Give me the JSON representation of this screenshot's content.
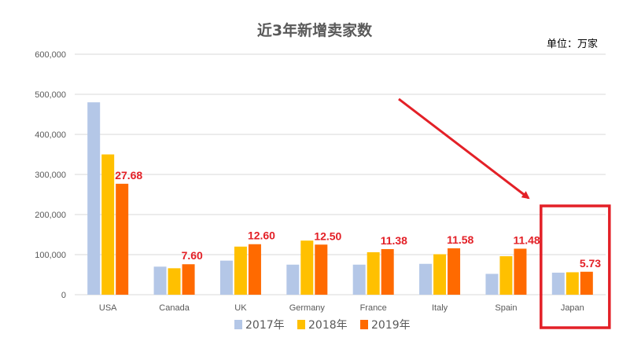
{
  "chart_data": {
    "type": "bar",
    "title": "近3年新增卖家数",
    "unit_note": "单位：万家",
    "categories": [
      "USA",
      "Canada",
      "UK",
      "Germany",
      "France",
      "Italy",
      "Spain",
      "Japan"
    ],
    "series": [
      {
        "name": "2017年",
        "color": "#b4c7e7",
        "values": [
          480000,
          70000,
          85000,
          75000,
          75000,
          77000,
          52000,
          55000
        ]
      },
      {
        "name": "2018年",
        "color": "#ffc000",
        "values": [
          350000,
          66000,
          120000,
          135000,
          106000,
          101000,
          96000,
          56000
        ]
      },
      {
        "name": "2019年",
        "color": "#ff6a00",
        "values": [
          276800,
          76000,
          126000,
          125000,
          113800,
          115800,
          114800,
          57300
        ]
      }
    ],
    "data_labels": [
      "27.68",
      "7.60",
      "12.60",
      "12.50",
      "11.38",
      "11.58",
      "11.48",
      "5.73"
    ],
    "yticks": [
      "0",
      "100,000",
      "200,000",
      "300,000",
      "400,000",
      "500,000",
      "600,000"
    ],
    "ylim": [
      0,
      600000
    ],
    "grid": true,
    "legend_position": "bottom",
    "annotation": {
      "type": "highlight-box-with-arrow",
      "target": "Japan",
      "color": "#e32027"
    }
  }
}
